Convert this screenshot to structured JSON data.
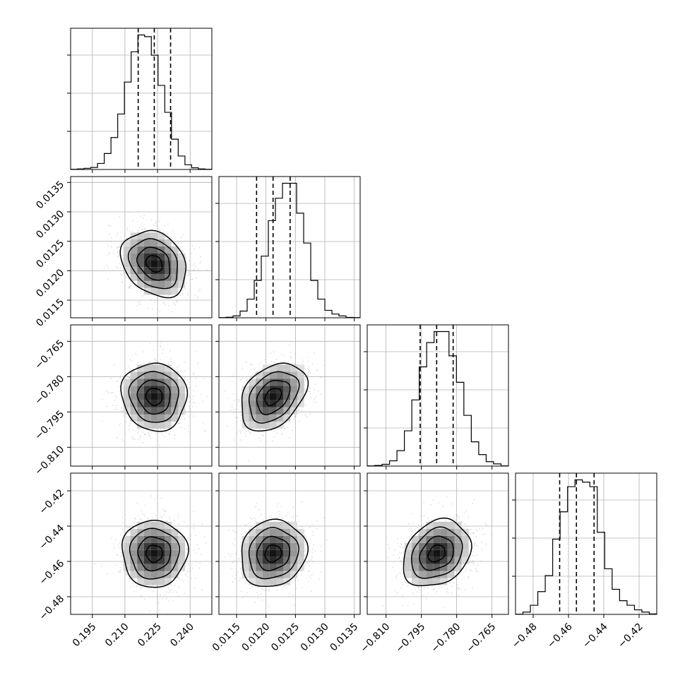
{
  "chart_data": {
    "type": "corner",
    "params": [
      {
        "range": [
          0.185,
          0.25
        ],
        "ticks": [
          0.195,
          0.21,
          0.225,
          0.24
        ],
        "tick_labels": [
          "0.195",
          "0.210",
          "0.225",
          "0.240"
        ],
        "mean": 0.2235,
        "sd": 0.0075,
        "quantiles": [
          0.2161,
          0.2235,
          0.231
        ],
        "hist_counts": [
          1,
          3,
          7,
          12,
          36,
          95,
          190,
          330,
          520,
          700,
          800,
          790,
          680,
          500,
          340,
          180,
          80,
          28,
          10,
          3,
          1
        ]
      },
      {
        "range": [
          0.0112,
          0.0136
        ],
        "ticks": [
          0.0115,
          0.012,
          0.0125,
          0.013,
          0.0135
        ],
        "tick_labels": [
          "0.0115",
          "0.0120",
          "0.0125",
          "0.0130",
          "0.0135"
        ],
        "mean": 0.01212,
        "sd": 0.00028,
        "quantiles": [
          0.01184,
          0.01212,
          0.01241
        ],
        "hist_counts": [
          1,
          3,
          10,
          36,
          100,
          200,
          330,
          520,
          640,
          720,
          720,
          560,
          400,
          200,
          100,
          40,
          20,
          10,
          2,
          1
        ]
      },
      {
        "range": [
          -0.818,
          -0.758
        ],
        "ticks": [
          -0.81,
          -0.795,
          -0.78,
          -0.765
        ],
        "tick_labels": [
          "−0.810",
          "−0.795",
          "−0.780",
          "−0.765"
        ],
        "mean": -0.7885,
        "sd": 0.0072,
        "quantiles": [
          -0.7955,
          -0.7885,
          -0.7815
        ],
        "hist_counts": [
          1,
          3,
          8,
          24,
          70,
          160,
          300,
          450,
          560,
          610,
          610,
          500,
          380,
          230,
          110,
          52,
          20,
          10,
          1
        ]
      },
      {
        "range": [
          -0.49,
          -0.41
        ],
        "ticks": [
          -0.48,
          -0.46,
          -0.44,
          -0.42
        ],
        "tick_labels": [
          "−0.48",
          "−0.46",
          "−0.44",
          "−0.42"
        ],
        "mean": -0.4555,
        "sd": 0.0095,
        "quantiles": [
          -0.465,
          -0.4555,
          -0.4455
        ],
        "hist_counts": [
          1,
          10,
          40,
          100,
          170,
          330,
          450,
          560,
          590,
          580,
          560,
          360,
          200,
          110,
          60,
          40,
          20,
          10,
          2
        ]
      }
    ],
    "pair_correlations": [
      [
        1,
        0,
        0,
        0
      ],
      [
        -0.25,
        1,
        0,
        0
      ],
      [
        -0.05,
        0.35,
        1,
        0
      ],
      [
        0.0,
        0.1,
        0.25,
        1
      ]
    ],
    "contour_levels": [
      0.5,
      1.0,
      1.5,
      2.0
    ],
    "quantile_line_style": "dashed",
    "grid": true,
    "colors": {
      "axes": "#000000",
      "grid": "#b0b0b0",
      "scatter": "#b0b0b0",
      "contour": "#000000"
    }
  }
}
